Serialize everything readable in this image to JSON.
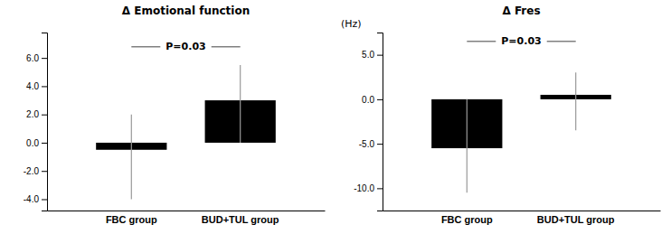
{
  "chart_data": [
    {
      "type": "bar",
      "title": "Δ Emotional function",
      "categories": [
        "FBC group",
        "BUD+TUL group"
      ],
      "values": [
        0.0,
        3.0
      ],
      "bottoms": [
        -0.5,
        0.0
      ],
      "err_low": [
        -4.0,
        0.0
      ],
      "err_high": [
        2.0,
        5.5
      ],
      "color": "#000000",
      "annotations": [
        {
          "text": "P=0.03",
          "y": 6.8
        }
      ],
      "ylim": [
        -4.8,
        7.8
      ],
      "yticks": [
        {
          "value": -4.0,
          "label": "-4.0"
        },
        {
          "value": -2.0,
          "label": "-2.0"
        },
        {
          "value": 0.0,
          "label": "0.0"
        },
        {
          "value": 2.0,
          "label": "2.0"
        },
        {
          "value": 4.0,
          "label": "4.0"
        },
        {
          "value": 6.0,
          "label": "6.0"
        }
      ],
      "grid": false
    },
    {
      "type": "bar",
      "title": "Δ Fres",
      "ylabel": "(Hz)",
      "categories": [
        "FBC group",
        "BUD+TUL group"
      ],
      "values": [
        0.0,
        0.5
      ],
      "bottoms": [
        -5.5,
        0.0
      ],
      "err_low": [
        -10.5,
        -3.5
      ],
      "err_high": [
        0.0,
        3.0
      ],
      "color": "#000000",
      "annotations": [
        {
          "text": "P=0.03",
          "y": 6.5
        }
      ],
      "ylim": [
        -12.5,
        7.5
      ],
      "yticks": [
        {
          "value": -10.0,
          "label": "-10.0"
        },
        {
          "value": -5.0,
          "label": "-5.0"
        },
        {
          "value": 0.0,
          "label": "0.0"
        },
        {
          "value": 5.0,
          "label": "5.0"
        }
      ],
      "grid": false
    }
  ]
}
